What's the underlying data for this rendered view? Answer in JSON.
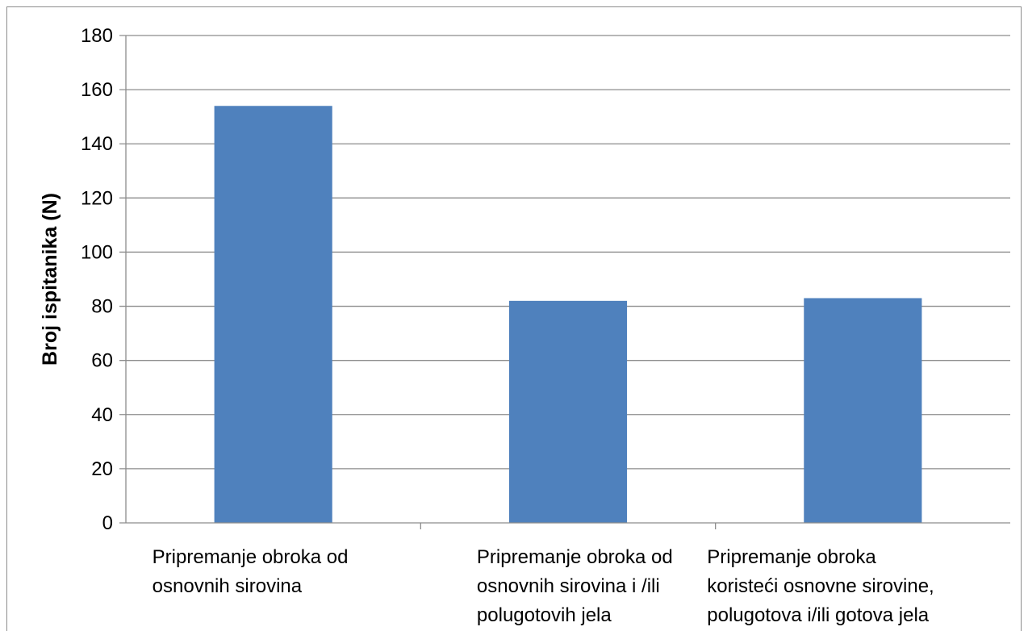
{
  "chart_data": {
    "type": "bar",
    "title": "",
    "xlabel": "",
    "ylabel": "Broj ispitanika (N)",
    "ylim": [
      0,
      180
    ],
    "ytick_step": 20,
    "yticks": [
      "0",
      "20",
      "40",
      "60",
      "80",
      "100",
      "120",
      "140",
      "160",
      "180"
    ],
    "grid": true,
    "legend": "none",
    "bar_color": "#4f81bd",
    "grid_color": "#8c8c8c",
    "categories": [
      [
        "Pripremanje obroka od",
        "osnovnih sirovina"
      ],
      [
        "Pripremanje obroka od",
        "osnovnih sirovina i /ili",
        "polugotovih jela"
      ],
      [
        "Pripremanje obroka",
        "koristeći osnovne sirovine,",
        "polugotova i/ili  gotova jela"
      ]
    ],
    "values": [
      154,
      82,
      83
    ]
  }
}
